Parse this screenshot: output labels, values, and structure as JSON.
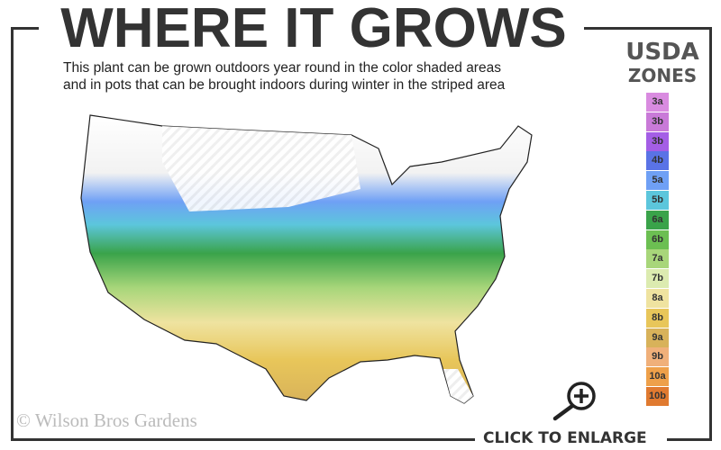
{
  "header": {
    "title": "WHERE IT GROWS",
    "subtitle_line1": "This plant can be grown outdoors year round in the color shaded areas",
    "subtitle_line2": "and in pots that can be brought indoors during winter in the striped area"
  },
  "legend": {
    "title_line1": "USDA",
    "title_line2": "ZONES",
    "zones": [
      {
        "label": "3a",
        "color": "#d98be0"
      },
      {
        "label": "3b",
        "color": "#c97ad8"
      },
      {
        "label": "3b",
        "color": "#a45ee6"
      },
      {
        "label": "4b",
        "color": "#5a73e6"
      },
      {
        "label": "5a",
        "color": "#6fa0f5"
      },
      {
        "label": "5b",
        "color": "#5cc6dc"
      },
      {
        "label": "6a",
        "color": "#3aa34a"
      },
      {
        "label": "6b",
        "color": "#6cbf52"
      },
      {
        "label": "7a",
        "color": "#a8d67a"
      },
      {
        "label": "7b",
        "color": "#dcebb0"
      },
      {
        "label": "8a",
        "color": "#efe3a0"
      },
      {
        "label": "8b",
        "color": "#e8c65a"
      },
      {
        "label": "9a",
        "color": "#d8b25a"
      },
      {
        "label": "9b",
        "color": "#f0b07a"
      },
      {
        "label": "10a",
        "color": "#eea04a"
      },
      {
        "label": "10b",
        "color": "#e07a30"
      }
    ]
  },
  "footer": {
    "copyright": "© Wilson Bros Gardens",
    "enlarge_label": "CLICK TO ENLARGE"
  }
}
